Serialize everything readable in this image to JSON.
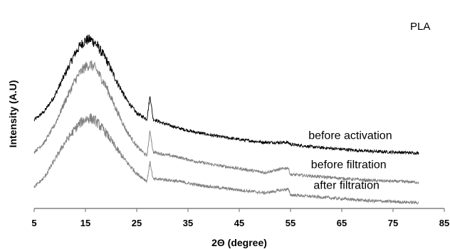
{
  "chart_data": {
    "type": "line",
    "title": "",
    "annotation": "PLA",
    "xlabel": "2Θ (degree)",
    "ylabel": "Intensity (A.U)",
    "xlim": [
      5,
      85
    ],
    "xticks": [
      5,
      15,
      25,
      35,
      45,
      55,
      65,
      75,
      85
    ],
    "ylim": [
      0,
      1
    ],
    "y_tick_labels": false,
    "grid": false,
    "legend": "none",
    "series": [
      {
        "name": "before activation",
        "color": "#000000",
        "x": [
          5,
          7,
          9,
          11,
          13,
          14,
          15,
          16,
          17,
          19,
          21,
          23,
          25,
          27,
          27.6,
          28.2,
          30,
          33,
          36,
          40,
          45,
          50,
          54.5,
          55,
          60,
          65,
          70,
          75,
          80
        ],
        "y": [
          0.455,
          0.5,
          0.58,
          0.69,
          0.8,
          0.84,
          0.865,
          0.87,
          0.85,
          0.77,
          0.66,
          0.56,
          0.49,
          0.46,
          0.58,
          0.46,
          0.44,
          0.415,
          0.395,
          0.375,
          0.355,
          0.34,
          0.34,
          0.33,
          0.315,
          0.305,
          0.295,
          0.29,
          0.285
        ]
      },
      {
        "name": "before filtration",
        "color": "#808080",
        "x": [
          5,
          7,
          9,
          11,
          13,
          14,
          15,
          16,
          17,
          19,
          21,
          23,
          25,
          27,
          27.6,
          28.2,
          30,
          33,
          36,
          40,
          45,
          50,
          54.5,
          55,
          60,
          65,
          70,
          75,
          80
        ],
        "y": [
          0.29,
          0.34,
          0.43,
          0.55,
          0.66,
          0.7,
          0.73,
          0.74,
          0.72,
          0.63,
          0.51,
          0.4,
          0.32,
          0.27,
          0.4,
          0.29,
          0.28,
          0.265,
          0.245,
          0.225,
          0.205,
          0.185,
          0.21,
          0.175,
          0.165,
          0.155,
          0.145,
          0.14,
          0.135
        ]
      },
      {
        "name": "after filtration",
        "color": "#808080",
        "x": [
          5,
          7,
          9,
          11,
          13,
          14,
          15,
          16,
          17,
          19,
          21,
          23,
          25,
          27,
          27.6,
          28.2,
          30,
          33,
          36,
          40,
          45,
          50,
          54.5,
          55,
          60,
          65,
          70,
          75,
          80
        ],
        "y": [
          0.11,
          0.16,
          0.25,
          0.34,
          0.41,
          0.44,
          0.46,
          0.465,
          0.45,
          0.39,
          0.31,
          0.24,
          0.18,
          0.14,
          0.24,
          0.15,
          0.15,
          0.14,
          0.125,
          0.11,
          0.095,
          0.08,
          0.1,
          0.07,
          0.06,
          0.05,
          0.04,
          0.035,
          0.03
        ]
      }
    ]
  }
}
